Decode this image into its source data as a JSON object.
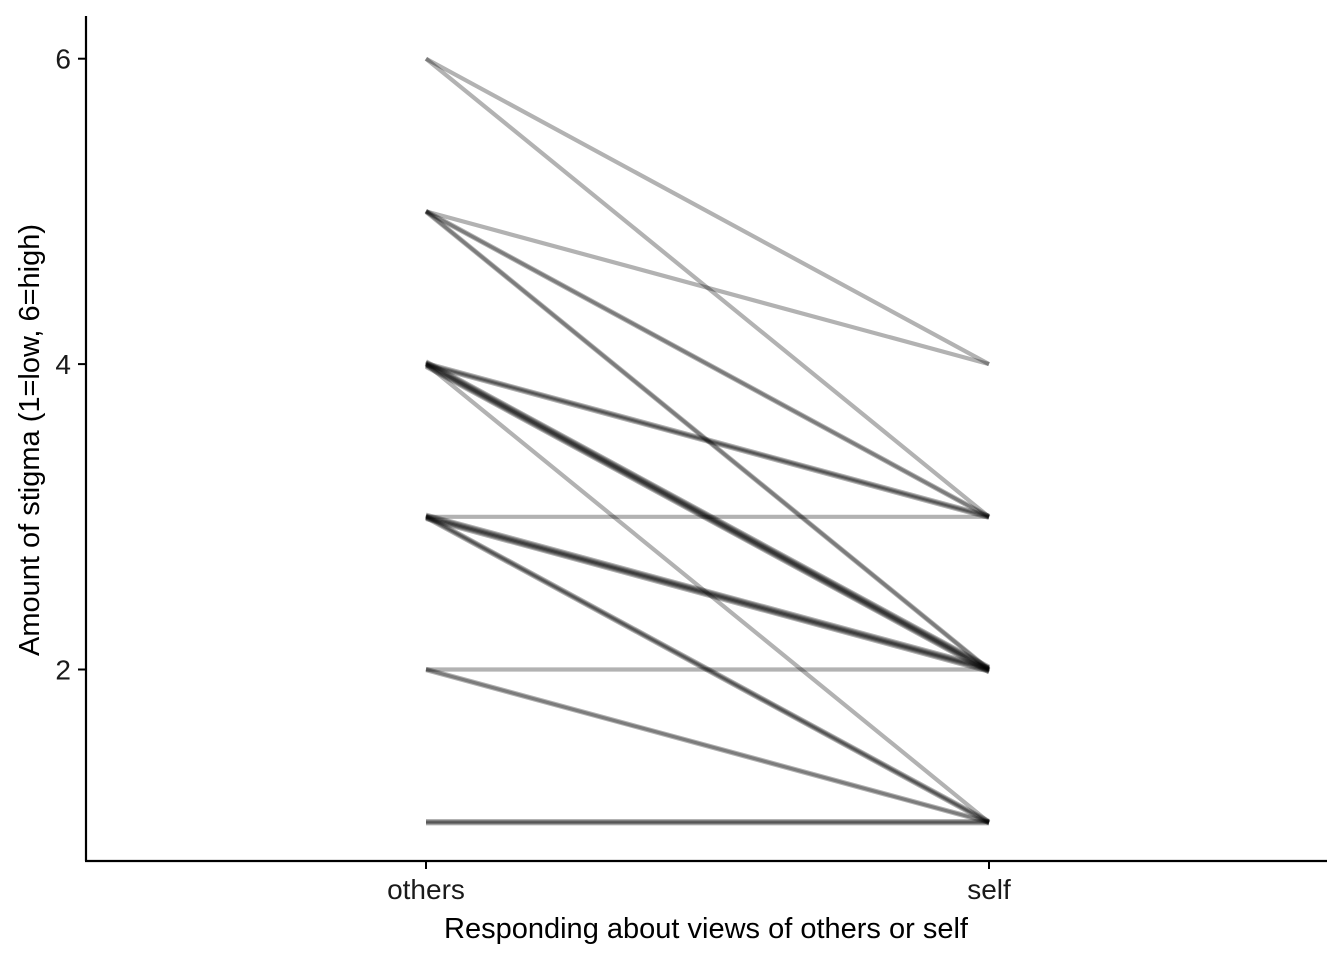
{
  "chart_data": {
    "type": "line",
    "title": "",
    "xlabel": "Responding about views of others or self",
    "ylabel": "Amount of stigma (1=low, 6=high)",
    "categories": [
      "others",
      "self"
    ],
    "y_ticks": [
      "2",
      "4",
      "6"
    ],
    "ylim": [
      0.74,
      6.3
    ],
    "grid": false,
    "legend": "none",
    "line_color": "#000000",
    "line_alpha": 0.3,
    "segments": [
      {
        "others": 6,
        "self": 4,
        "count": 1
      },
      {
        "others": 6,
        "self": 3,
        "count": 1
      },
      {
        "others": 5,
        "self": 4,
        "count": 1
      },
      {
        "others": 5,
        "self": 3,
        "count": 2
      },
      {
        "others": 5,
        "self": 2,
        "count": 2
      },
      {
        "others": 4,
        "self": 3,
        "count": 3
      },
      {
        "others": 4,
        "self": 2,
        "count": 6
      },
      {
        "others": 4,
        "self": 1,
        "count": 1
      },
      {
        "others": 3,
        "self": 3,
        "count": 1
      },
      {
        "others": 3,
        "self": 2,
        "count": 5
      },
      {
        "others": 3,
        "self": 1,
        "count": 3
      },
      {
        "others": 2,
        "self": 2,
        "count": 1
      },
      {
        "others": 2,
        "self": 1,
        "count": 2
      },
      {
        "others": 1,
        "self": 1,
        "count": 3
      }
    ]
  }
}
